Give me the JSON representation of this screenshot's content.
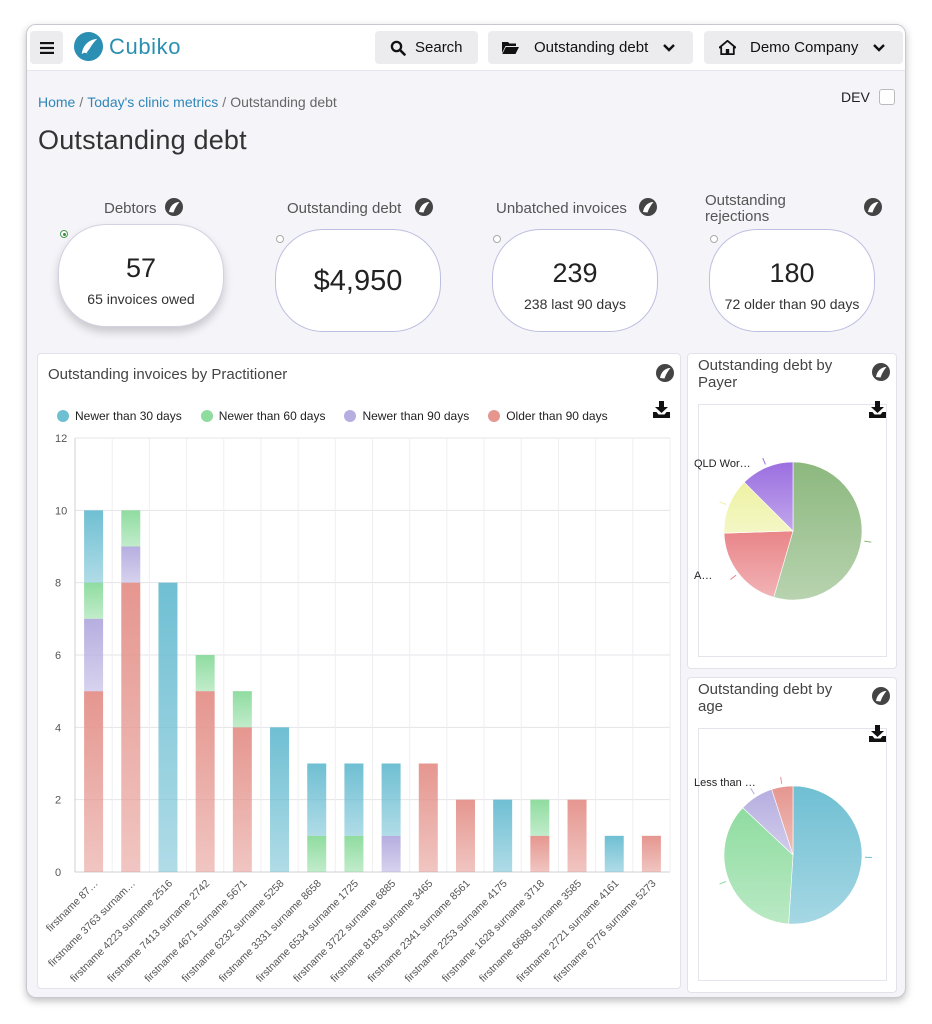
{
  "app": {
    "name": "Cubiko",
    "search_label": "Search",
    "report_selector": "Outstanding debt",
    "company_selector": "Demo Company"
  },
  "breadcrumb": {
    "home": "Home",
    "parent": "Today's clinic metrics",
    "current": "Outstanding debt"
  },
  "dev_label": "DEV",
  "dev_checked": false,
  "page_title": "Outstanding debt",
  "metrics": [
    {
      "label": "Debtors",
      "value": "57",
      "sub": "65 invoices owed",
      "selected": true
    },
    {
      "label": "Outstanding debt",
      "value": "$4,950",
      "sub": "",
      "selected": false
    },
    {
      "label": "Unbatched invoices",
      "value": "239",
      "sub": "238 last 90 days",
      "selected": false
    },
    {
      "label": "Outstanding rejections",
      "value": "180",
      "sub": "72 older than 90 days",
      "selected": false
    }
  ],
  "colors": {
    "accent": "#2a8fb3",
    "newer30": "#6fbfd3",
    "newer60": "#8fdca0",
    "newer90": "#b6aee0",
    "older90": "#e5968f"
  },
  "chart_data": [
    {
      "type": "bar",
      "stacked": true,
      "title": "Outstanding invoices by Practitioner",
      "legend_position": "top",
      "ylim": [
        0,
        12
      ],
      "yticks": [
        0,
        2,
        4,
        6,
        8,
        10,
        12
      ],
      "grid": true,
      "categories": [
        "firstname 87…",
        "firstname 3763 surnam…",
        "firstname 4223 surname 2516",
        "firstname 7413 surname 2742",
        "firstname 4671 surname 5671",
        "firstname 6232 surname 5258",
        "firstname 3331 surname 8658",
        "firstname 6534 surname 1725",
        "firstname 3722 surname 6885",
        "firstname 8183 surname 3465",
        "firstname 2341 surname 8561",
        "firstname 2253 surname 4175",
        "firstname 1628 surname 3718",
        "firstname 6688 surname 3585",
        "firstname 2721 surname 4161",
        "firstname 6776 surname 5273"
      ],
      "series": [
        {
          "name": "Older than 90 days",
          "color": "#e5968f",
          "values": [
            5,
            8,
            0,
            5,
            4,
            0,
            0,
            0,
            0,
            3,
            2,
            0,
            1,
            2,
            0,
            1
          ]
        },
        {
          "name": "Newer than 90 days",
          "color": "#b6aee0",
          "values": [
            2,
            1,
            0,
            0,
            0,
            0,
            0,
            0,
            1,
            0,
            0,
            0,
            0,
            0,
            0,
            0
          ]
        },
        {
          "name": "Newer than 60 days",
          "color": "#8fdca0",
          "values": [
            1,
            1,
            0,
            1,
            1,
            0,
            1,
            1,
            0,
            0,
            0,
            0,
            1,
            0,
            0,
            0
          ]
        },
        {
          "name": "Newer than 30 days",
          "color": "#6fbfd3",
          "values": [
            2,
            0,
            8,
            0,
            0,
            4,
            2,
            2,
            2,
            0,
            0,
            2,
            0,
            0,
            1,
            0
          ]
        }
      ],
      "legend_order": [
        "Newer than 30 days",
        "Newer than 60 days",
        "Newer than 90 days",
        "Older than 90 days"
      ]
    },
    {
      "type": "pie",
      "title": "Outstanding debt by Payer",
      "labels": [
        "",
        "A…",
        "",
        "QLD Wor…"
      ],
      "values": [
        54.5,
        20,
        13,
        12.5
      ],
      "colors": [
        "#8cb87e",
        "#e98589",
        "#edf2a2",
        "#9b6fe0"
      ]
    },
    {
      "type": "pie",
      "title": "Outstanding debt by age",
      "labels": [
        "",
        "",
        "Less than …",
        ""
      ],
      "values": [
        51,
        36,
        8,
        5
      ],
      "colors": [
        "#6fbfd3",
        "#8fdca0",
        "#b6aee0",
        "#e5968f"
      ]
    }
  ]
}
